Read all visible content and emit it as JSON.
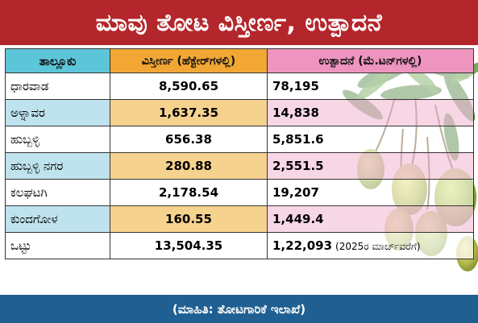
{
  "title": "ಮಾವು ತೋಟ ವಿಸ್ತೀರ್ಣ, ಉತ್ಪಾದನೆ",
  "headers": {
    "taluk": "ತಾಲ್ಲೂಕು",
    "area": "ವಿಸ್ತೀರ್ಣ (ಹೆಕ್ಟೇರ್‌ಗಳಲ್ಲಿ)",
    "production": "ಉತ್ಪಾದನೆ (ಮೆ.ಟನ್‌ಗಳಲ್ಲಿ)"
  },
  "rows": [
    {
      "taluk": "ಧಾರವಾಡ",
      "area": "8,590.65",
      "production": "78,195"
    },
    {
      "taluk": "ಅಳ್ನಾವರ",
      "area": "1,637.35",
      "production": "14,838"
    },
    {
      "taluk": "ಹುಬ್ಬಳ್ಳಿ",
      "area": "656.38",
      "production": "5,851.6"
    },
    {
      "taluk": "ಹುಬ್ಬಳ್ಳಿ ನಗರ",
      "area": "280.88",
      "production": "2,551.5"
    },
    {
      "taluk": "ಕಲಘಟಗಿ",
      "area": "2,178.54",
      "production": "19,207"
    },
    {
      "taluk": "ಕುಂದಗೋಳ",
      "area": "160.55",
      "production": "1,449.4"
    }
  ],
  "total": {
    "label": "ಒಟ್ಟು",
    "area": "13,504.35",
    "production": "1,22,093",
    "note": "(2025ರ ಮಾರ್ಚ್‌ವರೆಗೆ)"
  },
  "source": "(ಮಾಹಿತಿ: ತೋಟಗಾರಿಕೆ ಇಲಾಖೆ)",
  "colors": {
    "title_bg": "#b3262b",
    "footer_bg": "#1f5f91",
    "header_taluk": "#5cc6d8",
    "header_area": "#f2a734",
    "header_production": "#ee95bf"
  },
  "illustration": "mango-tree-illustration"
}
